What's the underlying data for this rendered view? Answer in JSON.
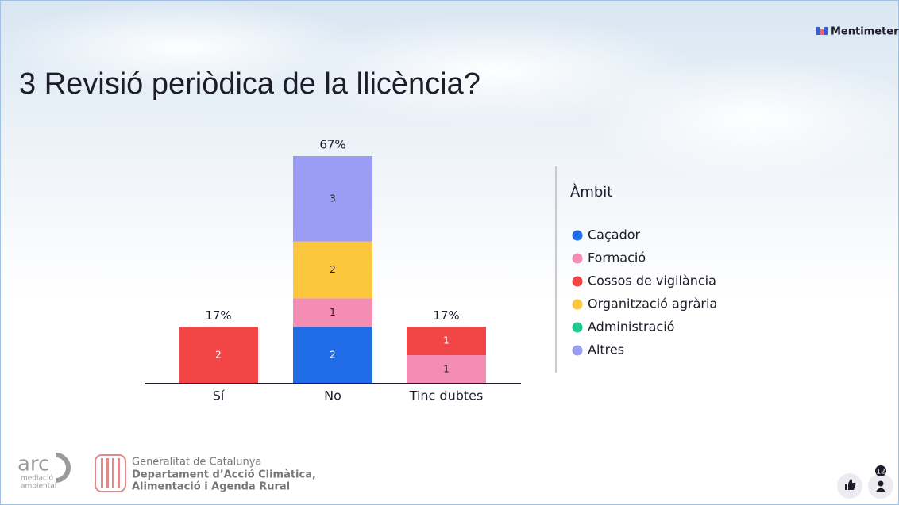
{
  "brand": "Mentimeter",
  "chart_data": {
    "type": "stacked_bar",
    "title": "3 Revisió periòdica de la llicència?",
    "categories": [
      "Sí",
      "No",
      "Tinc dubtes"
    ],
    "series": [
      {
        "name": "Caçador",
        "color": "#1f6be8",
        "values": [
          0,
          2,
          0
        ]
      },
      {
        "name": "Formació",
        "color": "#f38db3",
        "values": [
          0,
          1,
          1
        ]
      },
      {
        "name": "Cossos de vigilància",
        "color": "#f24646",
        "values": [
          2,
          0,
          1
        ]
      },
      {
        "name": "Organització agrària",
        "color": "#fcc63d",
        "values": [
          0,
          2,
          0
        ]
      },
      {
        "name": "Administració",
        "color": "#1fcb8c",
        "values": [
          0,
          0,
          0
        ]
      },
      {
        "name": "Altres",
        "color": "#9a9df3",
        "values": [
          0,
          3,
          0
        ]
      }
    ],
    "percentages": {
      "values": [
        17,
        67,
        17
      ],
      "value_labels": [
        "17%",
        "67%",
        "17%"
      ]
    },
    "legend_title": "Àmbit",
    "legend": "right"
  },
  "footer": {
    "arc_logo": "arc",
    "arc_subtitle": [
      "mediació",
      "ambiental"
    ],
    "government": "Generalitat de Catalunya",
    "department": [
      "Departament d’Acció Climàtica,",
      "Alimentació i Agenda Rural"
    ]
  },
  "participants": 12
}
